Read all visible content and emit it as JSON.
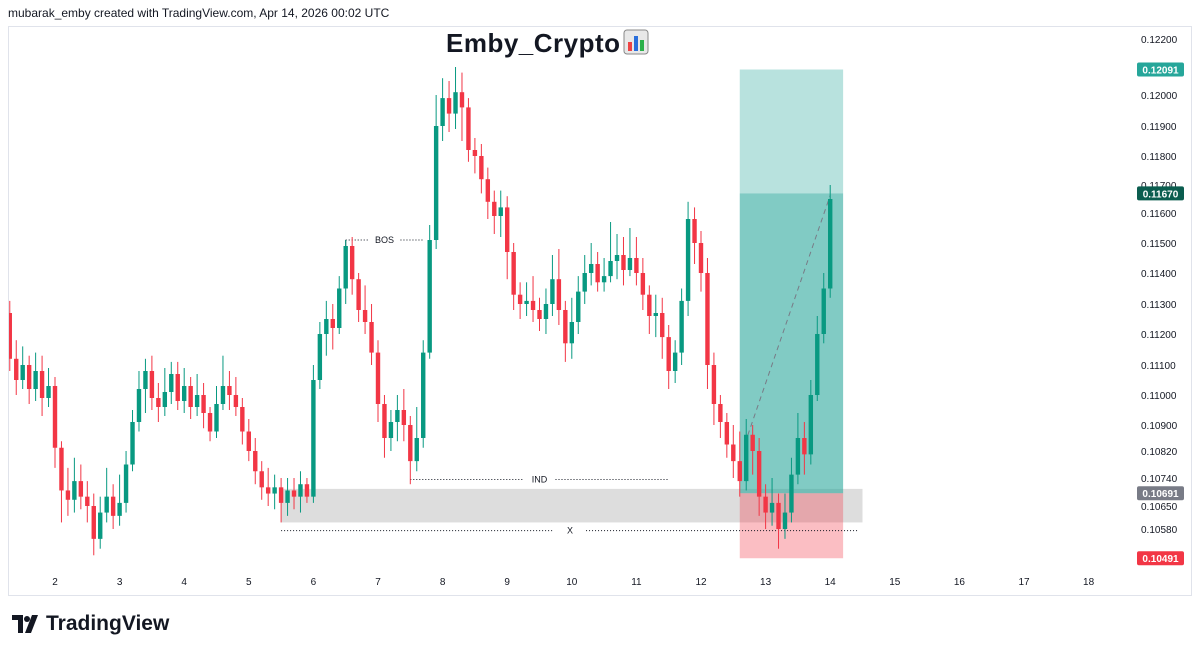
{
  "header": {
    "credit": "mubarak_emby created with TradingView.com, Apr 14, 2026 00:02 UTC"
  },
  "title": "Emby_Crypto",
  "title_icon": "bar-chart-emoji-icon",
  "brand": {
    "name": "TradingView",
    "icon": "tradingview-logo-icon"
  },
  "colors": {
    "up": "#089981",
    "down": "#f23645",
    "target_zone": "#26a69a",
    "stop_zone": "#f23645",
    "price_tag_current": "#0b5d4f",
    "price_tag_entry": "#787b86"
  },
  "chart_data": {
    "type": "candlestick",
    "title": "Emby_Crypto",
    "y_axis": {
      "ticks": [
        "0.12200",
        "0.12000",
        "0.11900",
        "0.11800",
        "0.11700",
        "0.11600",
        "0.11500",
        "0.11400",
        "0.11300",
        "0.11200",
        "0.11100",
        "0.11000",
        "0.10900",
        "0.10820",
        "0.10740",
        "0.10650",
        "0.10580"
      ],
      "range": [
        0.104,
        0.1222
      ],
      "tags": [
        {
          "label": "0.12091",
          "value": 0.12091,
          "kind": "target"
        },
        {
          "label": "0.11670",
          "value": 0.1167,
          "kind": "current"
        },
        {
          "label": "0.10691",
          "value": 0.10691,
          "kind": "entry"
        },
        {
          "label": "0.10491",
          "value": 0.10491,
          "kind": "stop"
        }
      ]
    },
    "x_axis": {
      "ticks": [
        "2",
        "3",
        "4",
        "5",
        "6",
        "7",
        "8",
        "9",
        "10",
        "11",
        "12",
        "13",
        "14",
        "15",
        "16",
        "17",
        "18"
      ]
    },
    "annotations": [
      {
        "label": "BOS",
        "price": 0.1151,
        "from_day": 6.5,
        "to_day": 7.7
      },
      {
        "label": "IND",
        "price": 0.10735,
        "from_day": 7.5,
        "to_day": 11.5
      },
      {
        "label": "X",
        "price": 0.10575,
        "from_day": 5.5,
        "to_day": 14.5
      }
    ],
    "demand_zone": {
      "from_day": 5.5,
      "to_day": 14.5,
      "top": 0.10705,
      "bottom": 0.106
    },
    "position": {
      "type": "long",
      "from_day": 12.6,
      "to_day": 14.2,
      "entry": 0.10691,
      "target": 0.12091,
      "stop": 0.10491,
      "current": 0.1167
    },
    "candles": [
      [
        1.2,
        0.112,
        0.1127,
        0.1135,
        0.1112
      ],
      [
        1.3,
        0.1127,
        0.1112,
        0.1131,
        0.1108
      ],
      [
        1.4,
        0.1112,
        0.1105,
        0.1118,
        0.11
      ],
      [
        1.5,
        0.1105,
        0.111,
        0.1116,
        0.1102
      ],
      [
        1.6,
        0.111,
        0.1102,
        0.1113,
        0.1097
      ],
      [
        1.7,
        0.1102,
        0.1108,
        0.1114,
        0.1098
      ],
      [
        1.8,
        0.1108,
        0.1099,
        0.1113,
        0.1093
      ],
      [
        1.9,
        0.1099,
        0.1103,
        0.1109,
        0.1096
      ],
      [
        2.0,
        0.1103,
        0.1083,
        0.1106,
        0.1077
      ],
      [
        2.1,
        0.1083,
        0.107,
        0.1085,
        0.106
      ],
      [
        2.2,
        0.107,
        0.1067,
        0.1077,
        0.1062
      ],
      [
        2.3,
        0.1067,
        0.1073,
        0.108,
        0.1063
      ],
      [
        2.4,
        0.1073,
        0.1068,
        0.1078,
        0.1064
      ],
      [
        2.5,
        0.1068,
        0.1065,
        0.1073,
        0.106
      ],
      [
        2.6,
        0.1065,
        0.1055,
        0.1069,
        0.105
      ],
      [
        2.7,
        0.1055,
        0.1063,
        0.1068,
        0.1052
      ],
      [
        2.8,
        0.1063,
        0.1068,
        0.1077,
        0.106
      ],
      [
        2.9,
        0.1068,
        0.1062,
        0.1072,
        0.1058
      ],
      [
        3.0,
        0.1062,
        0.1066,
        0.1075,
        0.1059
      ],
      [
        3.1,
        0.1066,
        0.1078,
        0.1082,
        0.1063
      ],
      [
        3.2,
        0.1078,
        0.1091,
        0.1095,
        0.1076
      ],
      [
        3.3,
        0.1091,
        0.1102,
        0.1108,
        0.1088
      ],
      [
        3.4,
        0.1102,
        0.1108,
        0.1112,
        0.1094
      ],
      [
        3.5,
        0.1108,
        0.1099,
        0.1113,
        0.1095
      ],
      [
        3.6,
        0.1099,
        0.1096,
        0.1104,
        0.1091
      ],
      [
        3.7,
        0.1096,
        0.1101,
        0.1109,
        0.1093
      ],
      [
        3.8,
        0.1101,
        0.1107,
        0.1111,
        0.1097
      ],
      [
        3.9,
        0.1107,
        0.1098,
        0.1111,
        0.1095
      ],
      [
        4.0,
        0.1098,
        0.1103,
        0.1109,
        0.1094
      ],
      [
        4.1,
        0.1103,
        0.1096,
        0.1106,
        0.1092
      ],
      [
        4.2,
        0.1096,
        0.11,
        0.1107,
        0.1093
      ],
      [
        4.3,
        0.11,
        0.1094,
        0.1104,
        0.1089
      ],
      [
        4.4,
        0.1094,
        0.1088,
        0.1096,
        0.1085
      ],
      [
        4.5,
        0.1088,
        0.1097,
        0.1103,
        0.1086
      ],
      [
        4.6,
        0.1097,
        0.1103,
        0.1113,
        0.1095
      ],
      [
        4.7,
        0.1103,
        0.11,
        0.1108,
        0.1095
      ],
      [
        4.8,
        0.11,
        0.1096,
        0.1106,
        0.1093
      ],
      [
        4.9,
        0.1096,
        0.1088,
        0.1099,
        0.1084
      ],
      [
        5.0,
        0.1088,
        0.1082,
        0.1092,
        0.1079
      ],
      [
        5.1,
        0.1082,
        0.1076,
        0.1086,
        0.1072
      ],
      [
        5.2,
        0.1076,
        0.1071,
        0.1079,
        0.1067
      ],
      [
        5.3,
        0.1071,
        0.1069,
        0.1077,
        0.1065
      ],
      [
        5.4,
        0.1069,
        0.1071,
        0.1075,
        0.1064
      ],
      [
        5.5,
        0.1071,
        0.1066,
        0.1074,
        0.106
      ],
      [
        5.6,
        0.1066,
        0.107,
        0.1074,
        0.1062
      ],
      [
        5.7,
        0.107,
        0.1068,
        0.1074,
        0.1064
      ],
      [
        5.8,
        0.1068,
        0.1072,
        0.1076,
        0.1063
      ],
      [
        5.9,
        0.1072,
        0.1068,
        0.1074,
        0.1066
      ],
      [
        6.0,
        0.1068,
        0.1105,
        0.111,
        0.1066
      ],
      [
        6.1,
        0.1105,
        0.112,
        0.1124,
        0.1102
      ],
      [
        6.2,
        0.112,
        0.1125,
        0.1131,
        0.1113
      ],
      [
        6.3,
        0.1125,
        0.1122,
        0.113,
        0.1115
      ],
      [
        6.4,
        0.1122,
        0.1135,
        0.1139,
        0.112
      ],
      [
        6.5,
        0.1135,
        0.1149,
        0.1151,
        0.113
      ],
      [
        6.6,
        0.1149,
        0.1138,
        0.1152,
        0.1133
      ],
      [
        6.7,
        0.1138,
        0.1128,
        0.114,
        0.1124
      ],
      [
        6.8,
        0.1128,
        0.1124,
        0.1136,
        0.112
      ],
      [
        6.9,
        0.1124,
        0.1114,
        0.113,
        0.111
      ],
      [
        7.0,
        0.1114,
        0.1097,
        0.1118,
        0.1091
      ],
      [
        7.1,
        0.1097,
        0.1086,
        0.11,
        0.108
      ],
      [
        7.2,
        0.1086,
        0.1091,
        0.1095,
        0.1082
      ],
      [
        7.3,
        0.1091,
        0.1095,
        0.11,
        0.1085
      ],
      [
        7.4,
        0.1095,
        0.109,
        0.1102,
        0.1085
      ],
      [
        7.5,
        0.109,
        0.1079,
        0.1093,
        0.1072
      ],
      [
        7.6,
        0.1079,
        0.1086,
        0.1096,
        0.1076
      ],
      [
        7.7,
        0.1086,
        0.1114,
        0.1118,
        0.1083
      ],
      [
        7.8,
        0.1114,
        0.1151,
        0.1156,
        0.1112
      ],
      [
        7.9,
        0.1151,
        0.119,
        0.12,
        0.1148
      ],
      [
        8.0,
        0.119,
        0.1199,
        0.1206,
        0.1185
      ],
      [
        8.1,
        0.1199,
        0.1194,
        0.1205,
        0.1188
      ],
      [
        8.2,
        0.1194,
        0.1201,
        0.121,
        0.1189
      ],
      [
        8.3,
        0.1201,
        0.1196,
        0.1208,
        0.1185
      ],
      [
        8.4,
        0.1196,
        0.1182,
        0.1199,
        0.1178
      ],
      [
        8.5,
        0.1182,
        0.118,
        0.1186,
        0.1174
      ],
      [
        8.6,
        0.118,
        0.1172,
        0.1184,
        0.1167
      ],
      [
        8.7,
        0.1172,
        0.1164,
        0.1176,
        0.1158
      ],
      [
        8.8,
        0.1164,
        0.1159,
        0.1168,
        0.1153
      ],
      [
        8.9,
        0.1159,
        0.1162,
        0.1168,
        0.1152
      ],
      [
        9.0,
        0.1162,
        0.1147,
        0.1166,
        0.1138
      ],
      [
        9.1,
        0.1147,
        0.1133,
        0.115,
        0.1128
      ],
      [
        9.2,
        0.1133,
        0.113,
        0.1137,
        0.1125
      ],
      [
        9.3,
        0.113,
        0.1131,
        0.1137,
        0.1126
      ],
      [
        9.4,
        0.1131,
        0.1128,
        0.1139,
        0.1124
      ],
      [
        9.5,
        0.1128,
        0.1125,
        0.1132,
        0.1121
      ],
      [
        9.6,
        0.1125,
        0.113,
        0.1135,
        0.112
      ],
      [
        9.7,
        0.113,
        0.1138,
        0.1146,
        0.1126
      ],
      [
        9.8,
        0.1138,
        0.1128,
        0.1148,
        0.1123
      ],
      [
        9.9,
        0.1128,
        0.1117,
        0.1131,
        0.1111
      ],
      [
        10.0,
        0.1117,
        0.1124,
        0.1132,
        0.1112
      ],
      [
        10.1,
        0.1124,
        0.1134,
        0.1139,
        0.112
      ],
      [
        10.2,
        0.1134,
        0.114,
        0.1146,
        0.113
      ],
      [
        10.3,
        0.114,
        0.1143,
        0.115,
        0.1136
      ],
      [
        10.4,
        0.1143,
        0.1137,
        0.1147,
        0.1134
      ],
      [
        10.5,
        0.1137,
        0.1139,
        0.1145,
        0.1134
      ],
      [
        10.6,
        0.1139,
        0.1144,
        0.1157,
        0.1137
      ],
      [
        10.7,
        0.1144,
        0.1146,
        0.1153,
        0.1138
      ],
      [
        10.8,
        0.1146,
        0.1141,
        0.1152,
        0.1136
      ],
      [
        10.9,
        0.1141,
        0.1145,
        0.1155,
        0.1139
      ],
      [
        11.0,
        0.1145,
        0.114,
        0.1152,
        0.1136
      ],
      [
        11.1,
        0.114,
        0.1133,
        0.1145,
        0.1128
      ],
      [
        11.2,
        0.1133,
        0.1126,
        0.1136,
        0.112
      ],
      [
        11.3,
        0.1126,
        0.1127,
        0.1133,
        0.1119
      ],
      [
        11.4,
        0.1127,
        0.1119,
        0.1132,
        0.1112
      ],
      [
        11.5,
        0.1119,
        0.1108,
        0.1123,
        0.1102
      ],
      [
        11.6,
        0.1108,
        0.1114,
        0.1118,
        0.1104
      ],
      [
        11.7,
        0.1114,
        0.1131,
        0.1135,
        0.111
      ],
      [
        11.8,
        0.1131,
        0.1158,
        0.1164,
        0.1126
      ],
      [
        11.9,
        0.1158,
        0.115,
        0.1162,
        0.1143
      ],
      [
        12.0,
        0.115,
        0.114,
        0.1154,
        0.1134
      ],
      [
        12.1,
        0.114,
        0.111,
        0.1145,
        0.1102
      ],
      [
        12.2,
        0.111,
        0.1097,
        0.1114,
        0.109
      ],
      [
        12.3,
        0.1097,
        0.1091,
        0.11,
        0.1086
      ],
      [
        12.4,
        0.1091,
        0.1084,
        0.1094,
        0.108
      ],
      [
        12.5,
        0.1084,
        0.1079,
        0.109,
        0.1074
      ],
      [
        12.6,
        0.1079,
        0.1073,
        0.1088,
        0.1068
      ],
      [
        12.7,
        0.1073,
        0.1087,
        0.1092,
        0.107
      ],
      [
        12.8,
        0.1087,
        0.1082,
        0.109,
        0.1075
      ],
      [
        12.9,
        0.1082,
        0.1068,
        0.1086,
        0.1062
      ],
      [
        13.0,
        0.1068,
        0.1063,
        0.1072,
        0.1058
      ],
      [
        13.1,
        0.1063,
        0.1066,
        0.1074,
        0.1059
      ],
      [
        13.2,
        0.1066,
        0.1058,
        0.1069,
        0.1052
      ],
      [
        13.3,
        0.1058,
        0.1063,
        0.1069,
        0.1055
      ],
      [
        13.4,
        0.1063,
        0.1075,
        0.108,
        0.106
      ],
      [
        13.5,
        0.1075,
        0.1086,
        0.1094,
        0.1072
      ],
      [
        13.6,
        0.1086,
        0.1081,
        0.1091,
        0.1075
      ],
      [
        13.7,
        0.1081,
        0.11,
        0.1105,
        0.1078
      ],
      [
        13.8,
        0.11,
        0.112,
        0.1126,
        0.1098
      ],
      [
        13.9,
        0.112,
        0.1135,
        0.114,
        0.1117
      ],
      [
        14.0,
        0.1135,
        0.1165,
        0.117,
        0.1132
      ]
    ]
  }
}
